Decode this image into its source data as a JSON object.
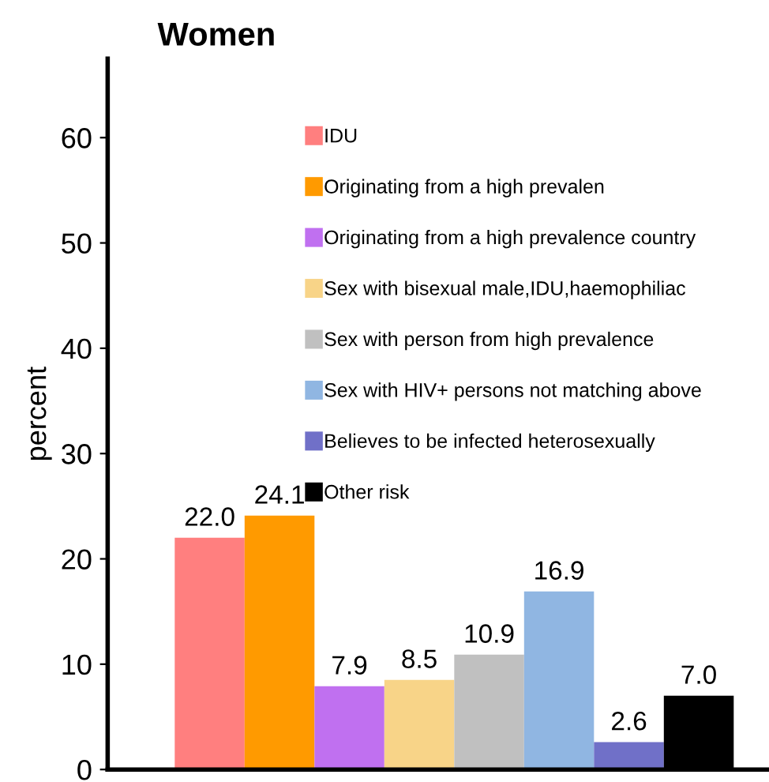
{
  "chart_data": {
    "type": "bar",
    "title": "Women",
    "ylabel": "percent",
    "categories": [
      null
    ],
    "series": [
      {
        "name": "IDU",
        "color": "#ff7f7f",
        "values": [
          22.0
        ],
        "value_labels": [
          "22.0"
        ]
      },
      {
        "name": "Originating from a high prevalen",
        "color": "#ff9a00",
        "values": [
          24.1
        ],
        "value_labels": [
          "24.1"
        ]
      },
      {
        "name": "Originating from a high prevalence country",
        "color": "#c070f0",
        "values": [
          7.9
        ],
        "value_labels": [
          "7.9"
        ]
      },
      {
        "name": "Sex with bisexual male,IDU,haemophiliac",
        "color": "#f8d488",
        "values": [
          8.5
        ],
        "value_labels": [
          "8.5"
        ]
      },
      {
        "name": "Sex with person from high prevalence",
        "color": "#c0c0c0",
        "values": [
          10.9
        ],
        "value_labels": [
          "10.9"
        ]
      },
      {
        "name": "Sex with HIV+ persons not matching above",
        "color": "#90b6e2",
        "values": [
          16.9
        ],
        "value_labels": [
          "16.9"
        ]
      },
      {
        "name": "Believes to be infected heterosexually",
        "color": "#7070c8",
        "values": [
          2.6
        ],
        "value_labels": [
          "2.6"
        ]
      },
      {
        "name": "Other risk",
        "color": "#000000",
        "values": [
          7.0
        ],
        "value_labels": [
          "7.0"
        ]
      }
    ],
    "ylim": [
      0,
      67.5
    ],
    "yticks": [
      0,
      10,
      20,
      30,
      40,
      50,
      60
    ],
    "tick_labels": "y",
    "legend": "top"
  }
}
